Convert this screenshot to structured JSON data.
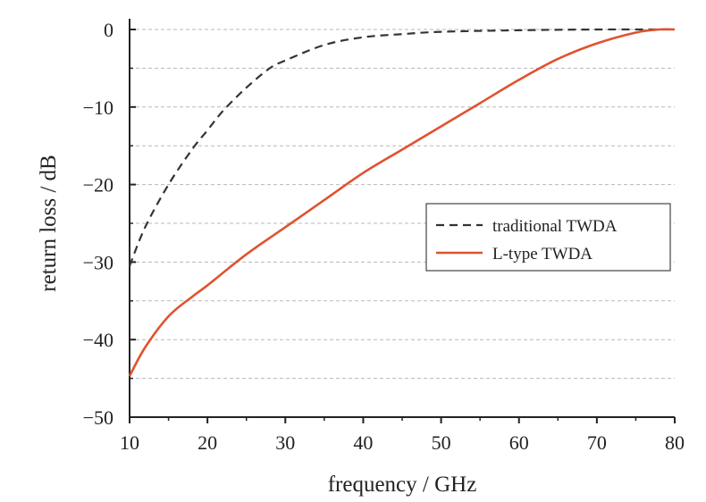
{
  "chart_data": {
    "type": "line",
    "xlabel": "frequency / GHz",
    "ylabel": "return loss / dB",
    "xlim": [
      10,
      80
    ],
    "ylim": [
      -50,
      0
    ],
    "xticks": [
      "10",
      "20",
      "30",
      "40",
      "50",
      "60",
      "70",
      "80"
    ],
    "yticks": [
      "0",
      "−10",
      "−20",
      "−30",
      "−40",
      "−50"
    ],
    "grid": "horizontal dashed",
    "legend_position": "center-right",
    "series": [
      {
        "name": "traditional TWDA",
        "color": "#333333",
        "style": "dashed",
        "x": [
          10,
          12,
          15,
          18,
          20,
          22,
          25,
          28,
          30,
          35,
          40,
          45,
          50,
          60,
          70,
          80
        ],
        "y": [
          -30.5,
          -25.5,
          -20,
          -15.5,
          -13,
          -10.5,
          -7.5,
          -5,
          -4,
          -2,
          -1,
          -0.6,
          -0.3,
          -0.1,
          0,
          0
        ]
      },
      {
        "name": "L-type TWDA",
        "color": "#e0522e",
        "style": "solid",
        "x": [
          10,
          12,
          15,
          18,
          20,
          25,
          30,
          35,
          40,
          45,
          50,
          55,
          60,
          65,
          70,
          75,
          78,
          80
        ],
        "y": [
          -44.7,
          -41,
          -37,
          -34.5,
          -33,
          -29,
          -25.5,
          -22,
          -18.5,
          -15.5,
          -12.5,
          -9.5,
          -6.5,
          -3.8,
          -1.8,
          -0.4,
          0,
          0
        ]
      }
    ]
  }
}
